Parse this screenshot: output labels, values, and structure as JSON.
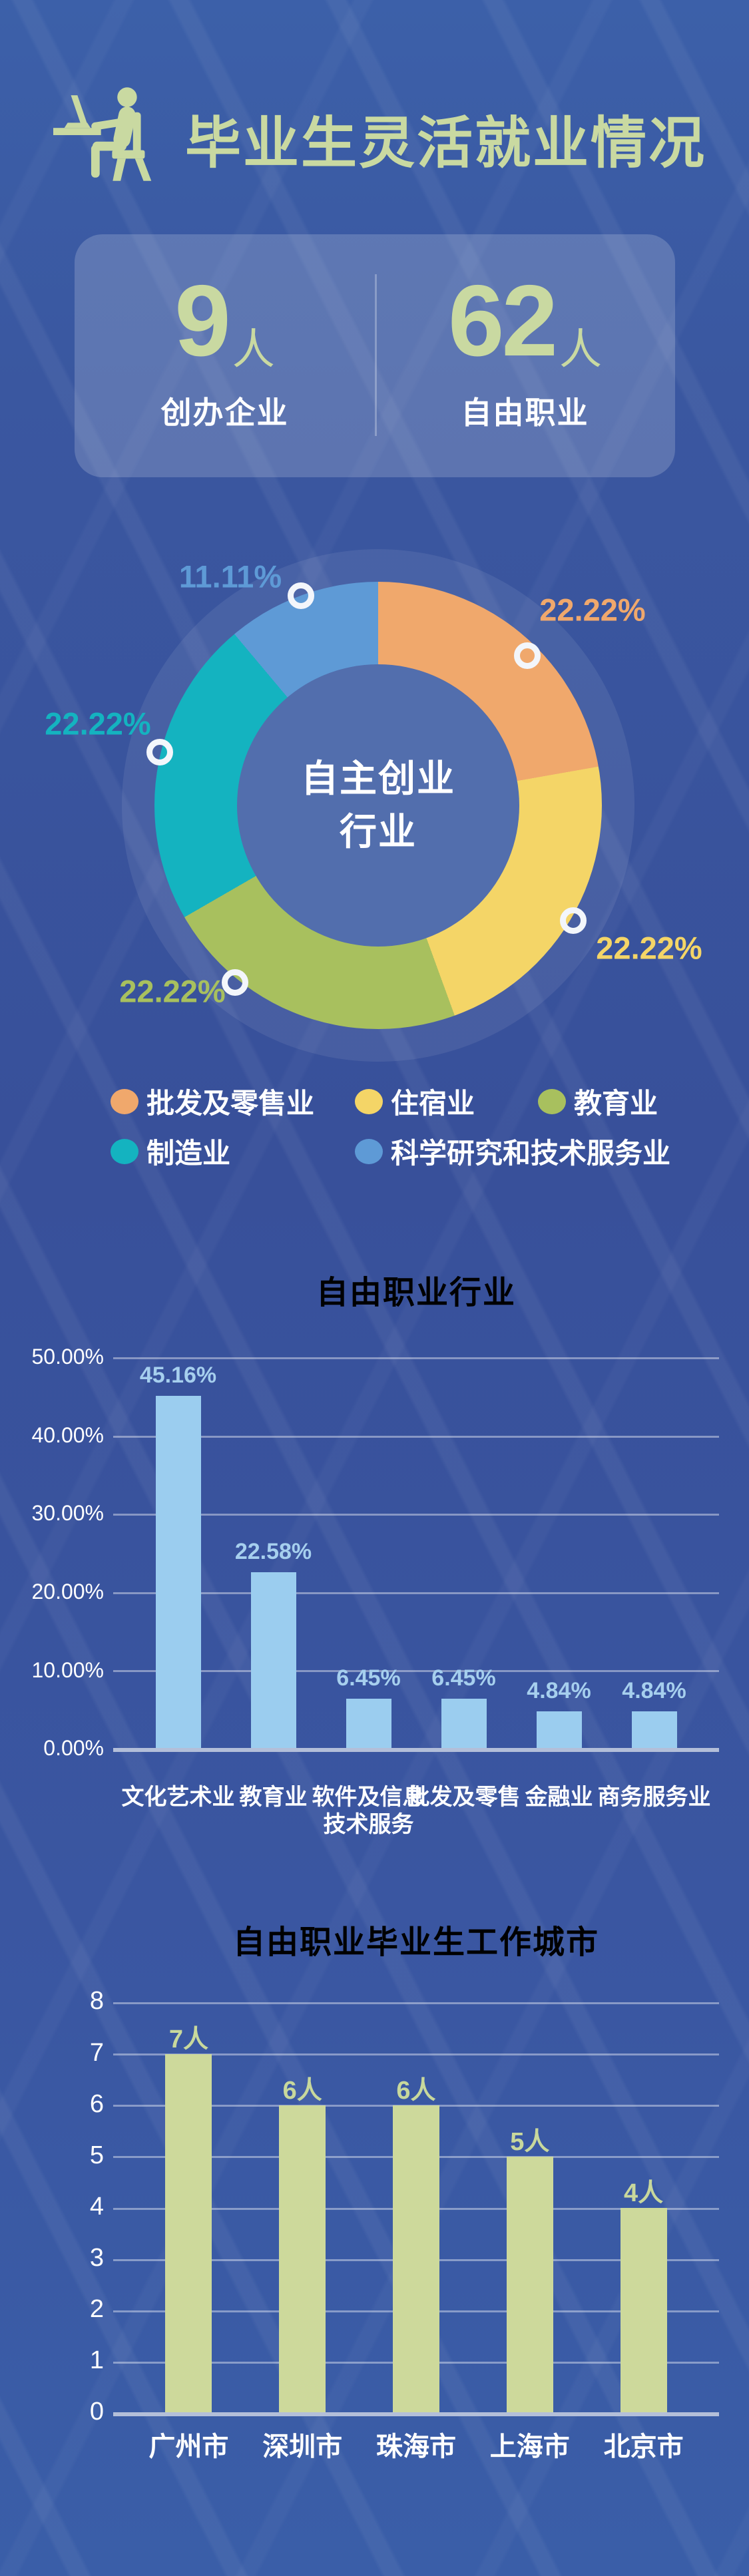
{
  "header": {
    "title": "毕业生灵活就业情况",
    "icon": "person-at-laptop-icon"
  },
  "stats": {
    "items": [
      {
        "value": "9",
        "unit": "人",
        "label": "创办企业"
      },
      {
        "value": "62",
        "unit": "人",
        "label": "自由职业"
      }
    ]
  },
  "colors": {
    "background": "#3a57a0",
    "accent_green": "#c9d9a1",
    "card": "rgba(255,255,255,0.18)",
    "white": "#ffffff",
    "chart1_accent": "#a6cbe8",
    "axis": "#b3bfd9"
  },
  "chart_data": [
    {
      "type": "pie",
      "subtype": "donut",
      "title": "自主创业行业",
      "center_lines": [
        "自主创业",
        "行业"
      ],
      "legend_position": "bottom",
      "slices": [
        {
          "label": "批发及零售业",
          "value": 22.22,
          "text": "22.22%",
          "color": "#f0a86c"
        },
        {
          "label": "住宿业",
          "value": 22.22,
          "text": "22.22%",
          "color": "#f4d567"
        },
        {
          "label": "教育业",
          "value": 22.22,
          "text": "22.22%",
          "color": "#a8c05e"
        },
        {
          "label": "制造业",
          "value": 22.22,
          "text": "22.22%",
          "color": "#14b3c0"
        },
        {
          "label": "科学研究和技术服务业",
          "value": 11.11,
          "text": "11.11%",
          "color": "#5e9ad6"
        }
      ]
    },
    {
      "type": "bar",
      "title": "自由职业行业",
      "title_color": "#a6cbe8",
      "categories": [
        "文化艺术业",
        "教育业",
        "软件及信息\n技术服务",
        "批发及零售",
        "金融业",
        "商务服务业"
      ],
      "values": [
        45.16,
        22.58,
        6.45,
        6.45,
        4.84,
        4.84
      ],
      "value_labels": [
        "45.16%",
        "22.58%",
        "6.45%",
        "6.45%",
        "4.84%",
        "4.84%"
      ],
      "value_label_color": "#a6cfee",
      "bar_color": "#9bcdef",
      "ymax": 50,
      "yticks": [
        "50.00%",
        "40.00%",
        "30.00%",
        "20.00%",
        "10.00%",
        "0.00%"
      ],
      "grid": true,
      "ylabel": "",
      "xlabel": ""
    },
    {
      "type": "bar",
      "title": "自由职业毕业生工作城市",
      "title_color": "#c8d89c",
      "categories": [
        "广州市",
        "深圳市",
        "珠海市",
        "上海市",
        "北京市"
      ],
      "values": [
        7,
        6,
        6,
        5,
        4
      ],
      "value_labels": [
        "7人",
        "6人",
        "6人",
        "5人",
        "4人"
      ],
      "value_label_color": "#c8d89c",
      "bar_color": "#cdd99b",
      "ymax": 8,
      "yticks": [
        "8",
        "7",
        "6",
        "5",
        "4",
        "3",
        "2",
        "1",
        "0"
      ],
      "grid": true,
      "ylabel": "",
      "xlabel": ""
    }
  ]
}
